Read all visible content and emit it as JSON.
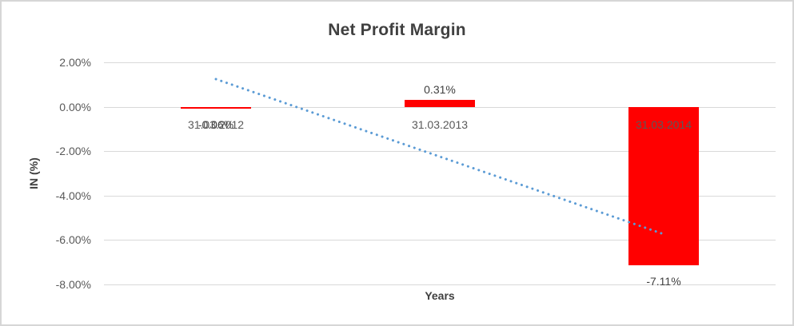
{
  "chart_data": {
    "type": "bar",
    "title": "Net Profit Margin",
    "xlabel": "Years",
    "ylabel": "IN (%)",
    "categories": [
      "31.03.2012",
      "31.03.2013",
      "31.03.2014"
    ],
    "series": [
      {
        "name": "Net Profit Margin",
        "values": [
          -0.06,
          0.31,
          -7.11
        ]
      }
    ],
    "data_labels": [
      "-0.06%",
      "0.31%",
      "-7.11%"
    ],
    "y_ticks": [
      {
        "label": "2.00%",
        "value": 2
      },
      {
        "label": "0.00%",
        "value": 0
      },
      {
        "label": "-2.00%",
        "value": -2
      },
      {
        "label": "-4.00%",
        "value": -4
      },
      {
        "label": "-6.00%",
        "value": -6
      },
      {
        "label": "-8.00%",
        "value": -8
      }
    ],
    "ylim": [
      -8,
      2
    ],
    "grid": true,
    "legend": "none",
    "bar_color": "#ff0000",
    "trendline": {
      "style": "dotted",
      "color": "#5b9bd5",
      "start": {
        "category_index": 0,
        "value": 1.25
      },
      "end": {
        "category_index": 2,
        "value": -5.75
      }
    }
  }
}
